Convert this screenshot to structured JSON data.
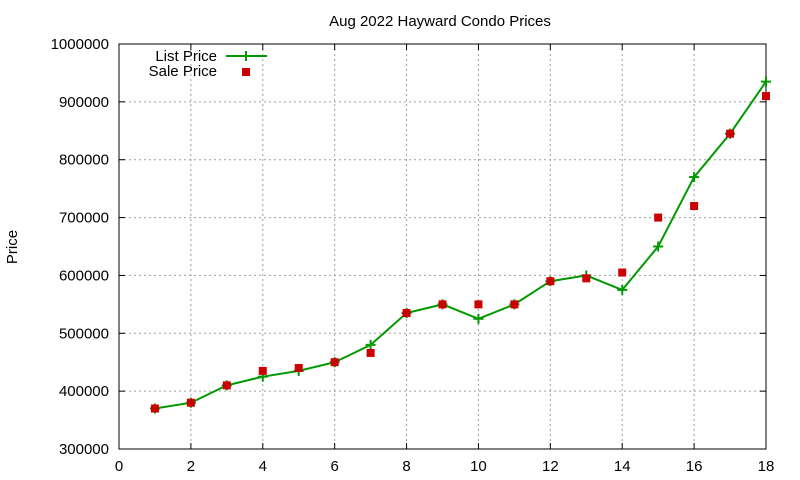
{
  "chart_data": {
    "type": "line",
    "title": "Aug 2022 Hayward Condo Prices",
    "xlabel": "",
    "ylabel": "Price",
    "xlim": [
      0,
      18
    ],
    "ylim": [
      300000,
      1000000
    ],
    "xticks": [
      0,
      2,
      4,
      6,
      8,
      10,
      12,
      14,
      16,
      18
    ],
    "yticks": [
      300000,
      400000,
      500000,
      600000,
      700000,
      800000,
      900000,
      1000000
    ],
    "grid": true,
    "legend_position": "top-left",
    "x": [
      1,
      2,
      3,
      4,
      5,
      6,
      7,
      8,
      9,
      10,
      11,
      12,
      13,
      14,
      15,
      16,
      17,
      18
    ],
    "series": [
      {
        "name": "List Price",
        "style": "linespoints",
        "marker": "plus",
        "color": "#009900",
        "values": [
          370000,
          380000,
          410000,
          425000,
          435000,
          450000,
          480000,
          535000,
          550000,
          525000,
          550000,
          590000,
          600000,
          575000,
          650000,
          770000,
          845000,
          935000
        ]
      },
      {
        "name": "Sale Price",
        "style": "points",
        "marker": "square",
        "color": "#cc0000",
        "values": [
          370000,
          380000,
          410000,
          435000,
          440000,
          450000,
          466000,
          535000,
          550000,
          550000,
          550000,
          590000,
          595000,
          605000,
          700000,
          720000,
          845000,
          910000
        ]
      }
    ]
  }
}
